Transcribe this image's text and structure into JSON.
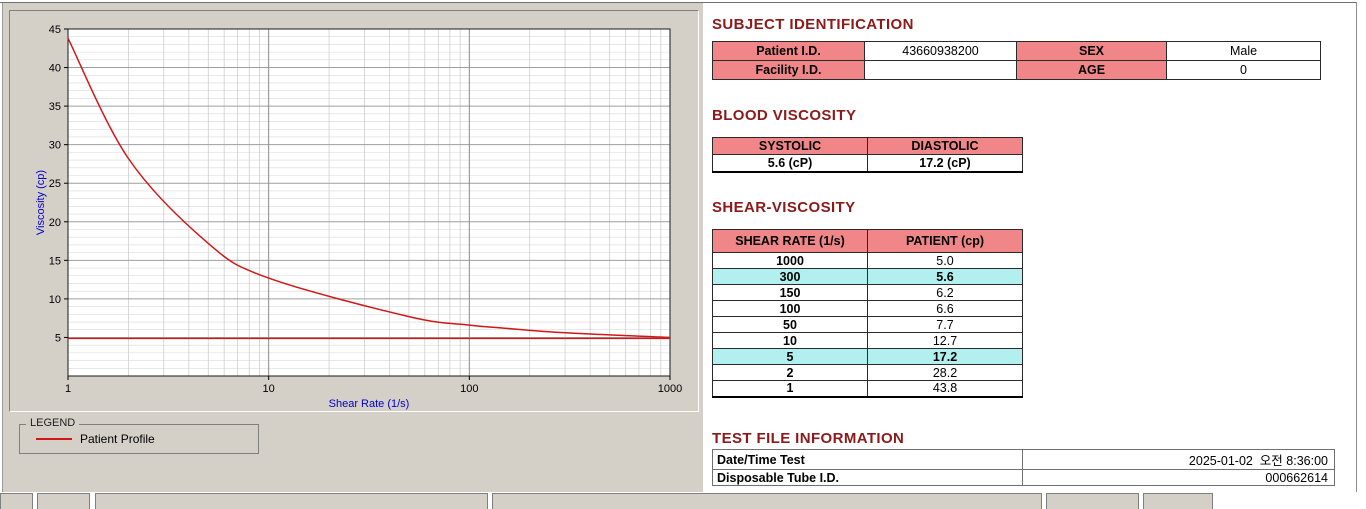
{
  "titles": {
    "subject_identification": "SUBJECT IDENTIFICATION",
    "blood_viscosity": "BLOOD VISCOSITY",
    "shear_viscosity": "SHEAR-VISCOSITY",
    "test_file_information": "TEST FILE INFORMATION"
  },
  "subject": {
    "patient_id_label": "Patient I.D.",
    "patient_id": "43660938200",
    "sex_label": "SEX",
    "sex": "Male",
    "facility_id_label": "Facility I.D.",
    "facility_id": "",
    "age_label": "AGE",
    "age": "0"
  },
  "blood": {
    "systolic_label": "SYSTOLIC",
    "diastolic_label": "DIASTOLIC",
    "systolic_value": "5.6 (cP)",
    "diastolic_value": "17.2 (cP)"
  },
  "shear_table": {
    "col1": "SHEAR RATE (1/s)",
    "col2": "PATIENT (cp)",
    "rows": [
      {
        "rate": "1000",
        "value": "5.0",
        "highlight": false
      },
      {
        "rate": "300",
        "value": "5.6",
        "highlight": true
      },
      {
        "rate": "150",
        "value": "6.2",
        "highlight": false
      },
      {
        "rate": "100",
        "value": "6.6",
        "highlight": false
      },
      {
        "rate": "50",
        "value": "7.7",
        "highlight": false
      },
      {
        "rate": "10",
        "value": "12.7",
        "highlight": false
      },
      {
        "rate": "5",
        "value": "17.2",
        "highlight": true
      },
      {
        "rate": "2",
        "value": "28.2",
        "highlight": false
      },
      {
        "rate": "1",
        "value": "43.8",
        "highlight": false
      }
    ]
  },
  "test_file": {
    "datetime_label": "Date/Time Test",
    "datetime_value": "2025-01-02  오전 8:36:00",
    "tube_label": "Disposable Tube I.D.",
    "tube_value": "000662614"
  },
  "legend": {
    "title": "LEGEND",
    "series_label": "Patient Profile"
  },
  "colors": {
    "section_title": "#8b1a1a",
    "table_header_bg": "#f18688",
    "highlight_bg": "#b2f0f0",
    "curve_red": "#d01818",
    "axis_label_blue": "#0000cc",
    "panel_gray": "#d4d0c8"
  },
  "chart_data": {
    "type": "line",
    "title": "",
    "xlabel": "Shear Rate (1/s)",
    "ylabel": "Viscosity (cp)",
    "x_scale": "log",
    "xlim": [
      1,
      1000
    ],
    "ylim": [
      0,
      45
    ],
    "x_ticks": [
      1,
      10,
      100,
      1000
    ],
    "y_ticks": [
      5,
      10,
      15,
      20,
      25,
      30,
      35,
      40,
      45
    ],
    "grid": true,
    "x": [
      1,
      2,
      5,
      10,
      50,
      100,
      150,
      300,
      1000
    ],
    "series": [
      {
        "name": "Patient Profile",
        "values": [
          43.8,
          28.2,
          17.2,
          12.7,
          7.7,
          6.6,
          6.2,
          5.6,
          5.0
        ]
      }
    ],
    "baseline": 5.0,
    "line_color": "#d01818"
  }
}
